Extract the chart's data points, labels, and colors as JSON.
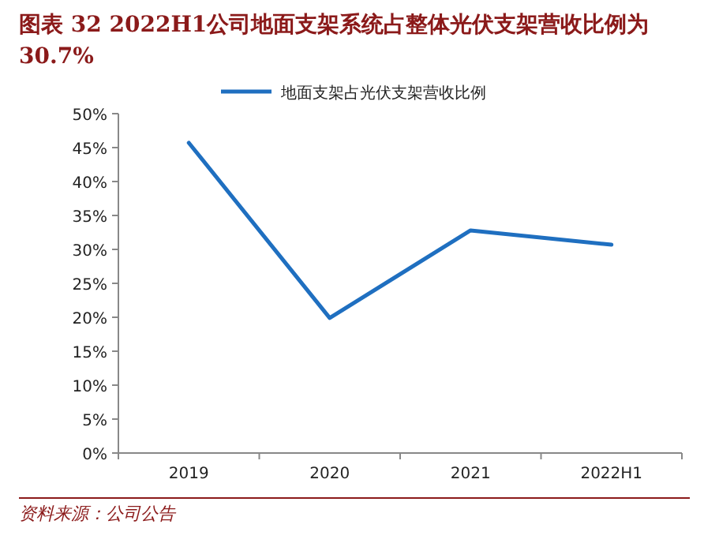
{
  "chart_data": {
    "type": "line",
    "title": "图表 32  2022H1公司地面支架系统占整体光伏支架营收比例为 30.7%",
    "categories": [
      "2019",
      "2020",
      "2021",
      "2022H1"
    ],
    "series": [
      {
        "name": "地面支架占光伏支架营收比例",
        "color": "#1f6fc0",
        "values": [
          45.7,
          19.9,
          32.8,
          30.7
        ]
      }
    ],
    "ylim": [
      0,
      50
    ],
    "yticks": [
      {
        "value": 0,
        "label": "0%"
      },
      {
        "value": 5,
        "label": "5%"
      },
      {
        "value": 10,
        "label": "10%"
      },
      {
        "value": 15,
        "label": "15%"
      },
      {
        "value": 20,
        "label": "20%"
      },
      {
        "value": 25,
        "label": "25%"
      },
      {
        "value": 30,
        "label": "30%"
      },
      {
        "value": 35,
        "label": "35%"
      },
      {
        "value": 40,
        "label": "40%"
      },
      {
        "value": 45,
        "label": "45%"
      },
      {
        "value": 50,
        "label": "50%"
      }
    ],
    "legend": "top",
    "annotations": [
      "资料来源：公司公告"
    ]
  }
}
